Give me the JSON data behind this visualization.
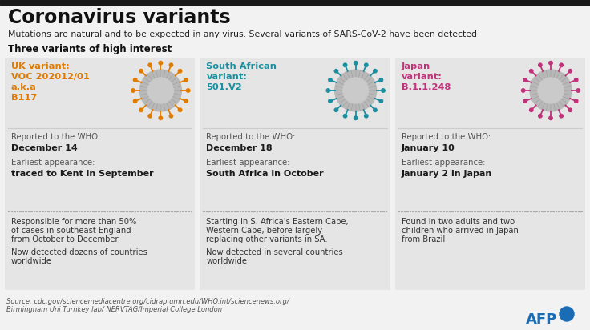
{
  "title": "Coronavirus variants",
  "subtitle": "Mutations are natural and to be expected in any virus. Several variants of SARS-CoV-2 have been detected",
  "section_header": "Three variants of high interest",
  "bg_color": "#f2f2f2",
  "panel_bg": "#e5e5e5",
  "top_bar_color": "#1a1a1a",
  "variants": [
    {
      "name_line1": "UK variant:",
      "name_line2": "VOC 202012/01",
      "name_line3": "a.k.a",
      "name_line4": "B117",
      "name_color_line1": "#e07b00",
      "name_color_rest": "#e07b00",
      "spike_color": "#e07b00",
      "who_label": "Reported to the WHO:",
      "who_value": "December 14",
      "earliest_label": "Earliest appearance:",
      "earliest_value": "traced to Kent in September",
      "detail1": "Responsible for more than 50%",
      "detail2": "of cases in southeast England",
      "detail3": "from October to December.",
      "detail4": "",
      "detail5": "Now detected dozens of countries",
      "detail6": "worldwide"
    },
    {
      "name_line1": "South African",
      "name_line2": "variant:",
      "name_line3": "501.V2",
      "name_line4": "",
      "name_color_line1": "#1a8fa0",
      "name_color_rest": "#1a8fa0",
      "spike_color": "#1a8fa0",
      "who_label": "Reported to the WHO:",
      "who_value": "December 18",
      "earliest_label": "Earliest appearance:",
      "earliest_value": "South Africa in October",
      "detail1": "Starting in S. Africa's Eastern Cape,",
      "detail2": "Western Cape, before largely",
      "detail3": "replacing other variants in SA.",
      "detail4": "",
      "detail5": "Now detected in several countries",
      "detail6": "worldwide"
    },
    {
      "name_line1": "Japan",
      "name_line2": "variant:",
      "name_line3": "B.1.1.248",
      "name_line4": "",
      "name_color_line1": "#c0337a",
      "name_color_rest": "#c0337a",
      "spike_color": "#c0337a",
      "who_label": "Reported to the WHO:",
      "who_value": "January 10",
      "earliest_label": "Earliest appearance:",
      "earliest_value": "January 2 in Japan",
      "detail1": "Found in two adults and two",
      "detail2": "children who arrived in Japan",
      "detail3": "from Brazil",
      "detail4": "",
      "detail5": "",
      "detail6": ""
    }
  ],
  "source_text1": "Source: cdc.gov/sciencemediacentre.org/cidrap.umn.edu/WHO.int/sciencenews.org/",
  "source_text2": "Birmingham Uni Turnkey lab/ NERVTAG/Imperial College London",
  "afp_text": "AFP",
  "afp_color": "#1a6db5"
}
